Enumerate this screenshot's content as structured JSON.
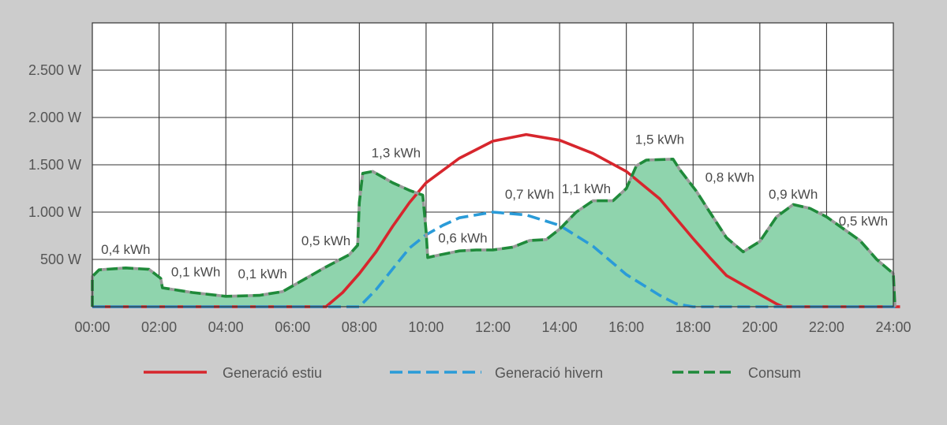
{
  "chart_data": {
    "type": "area",
    "x_ticks": [
      "00:00",
      "02:00",
      "04:00",
      "06:00",
      "08:00",
      "10:00",
      "12:00",
      "14:00",
      "16:00",
      "18:00",
      "20:00",
      "22:00",
      "24:00"
    ],
    "y_ticks": [
      {
        "value": 500,
        "label": "500 W"
      },
      {
        "value": 1000,
        "label": "1.000 W"
      },
      {
        "value": 1500,
        "label": "1.500 W"
      },
      {
        "value": 2000,
        "label": "2.000 W"
      },
      {
        "value": 2500,
        "label": "2.500 W"
      }
    ],
    "xlim": [
      0,
      24
    ],
    "ylim": [
      0,
      3000
    ],
    "grid": true,
    "legend_position": "bottom",
    "series": [
      {
        "name": "Consum",
        "style": "dashed",
        "color": "#1f8a3a",
        "fill": "#8fd4ad",
        "points": [
          [
            0.0,
            0
          ],
          [
            0.0,
            320
          ],
          [
            0.2,
            390
          ],
          [
            1.0,
            410
          ],
          [
            1.7,
            395
          ],
          [
            2.05,
            300
          ],
          [
            2.1,
            200
          ],
          [
            3.0,
            150
          ],
          [
            4.0,
            110
          ],
          [
            5.0,
            120
          ],
          [
            5.7,
            160
          ],
          [
            6.4,
            300
          ],
          [
            7.0,
            420
          ],
          [
            7.7,
            550
          ],
          [
            7.95,
            650
          ],
          [
            8.0,
            1100
          ],
          [
            8.1,
            1410
          ],
          [
            8.4,
            1430
          ],
          [
            9.0,
            1310
          ],
          [
            9.5,
            1230
          ],
          [
            9.9,
            1180
          ],
          [
            10.0,
            800
          ],
          [
            10.05,
            520
          ],
          [
            10.3,
            540
          ],
          [
            11.0,
            590
          ],
          [
            11.5,
            600
          ],
          [
            12.0,
            600
          ],
          [
            12.6,
            630
          ],
          [
            13.1,
            700
          ],
          [
            13.6,
            710
          ],
          [
            14.0,
            820
          ],
          [
            14.5,
            1000
          ],
          [
            15.0,
            1120
          ],
          [
            15.6,
            1120
          ],
          [
            16.0,
            1250
          ],
          [
            16.3,
            1490
          ],
          [
            16.6,
            1550
          ],
          [
            17.4,
            1560
          ],
          [
            17.6,
            1450
          ],
          [
            18.1,
            1220
          ],
          [
            18.5,
            1000
          ],
          [
            19.0,
            730
          ],
          [
            19.5,
            580
          ],
          [
            20.0,
            690
          ],
          [
            20.5,
            950
          ],
          [
            21.0,
            1080
          ],
          [
            21.5,
            1040
          ],
          [
            22.0,
            950
          ],
          [
            23.0,
            700
          ],
          [
            23.5,
            500
          ],
          [
            24.0,
            350
          ],
          [
            24.05,
            0
          ]
        ]
      },
      {
        "name": "Generació estiu",
        "style": "solid",
        "color": "#d7262d",
        "points": [
          [
            0,
            0
          ],
          [
            7.0,
            0
          ],
          [
            7.5,
            150
          ],
          [
            8.0,
            350
          ],
          [
            8.5,
            580
          ],
          [
            9.0,
            850
          ],
          [
            9.5,
            1100
          ],
          [
            10.0,
            1310
          ],
          [
            11.0,
            1570
          ],
          [
            12.0,
            1750
          ],
          [
            13.0,
            1820
          ],
          [
            14.0,
            1760
          ],
          [
            15.0,
            1620
          ],
          [
            16.0,
            1430
          ],
          [
            17.0,
            1140
          ],
          [
            17.5,
            930
          ],
          [
            18.0,
            720
          ],
          [
            18.5,
            520
          ],
          [
            19.0,
            330
          ],
          [
            19.5,
            230
          ],
          [
            20.0,
            130
          ],
          [
            20.5,
            30
          ],
          [
            20.7,
            0
          ],
          [
            24.2,
            0
          ]
        ]
      },
      {
        "name": "Generació hivern",
        "style": "dashdot",
        "color": "#2a9bd8",
        "points": [
          [
            0,
            0
          ],
          [
            8.0,
            0
          ],
          [
            8.5,
            180
          ],
          [
            9.0,
            400
          ],
          [
            9.5,
            620
          ],
          [
            10.0,
            760
          ],
          [
            10.5,
            860
          ],
          [
            11.0,
            940
          ],
          [
            12.0,
            1000
          ],
          [
            13.0,
            970
          ],
          [
            14.0,
            860
          ],
          [
            15.0,
            640
          ],
          [
            16.0,
            340
          ],
          [
            17.0,
            120
          ],
          [
            17.5,
            30
          ],
          [
            18.0,
            0
          ],
          [
            24.2,
            0
          ]
        ]
      }
    ],
    "annotations": [
      {
        "text": "0,4 kWh",
        "x": 1.0,
        "y": 560
      },
      {
        "text": "0,1 kWh",
        "x": 3.1,
        "y": 320
      },
      {
        "text": "0,1 kWh",
        "x": 5.1,
        "y": 300
      },
      {
        "text": "0,5 kWh",
        "x": 7.0,
        "y": 650
      },
      {
        "text": "1,3 kWh",
        "x": 9.1,
        "y": 1580
      },
      {
        "text": "0,6 kWh",
        "x": 11.1,
        "y": 680
      },
      {
        "text": "0,7 kWh",
        "x": 13.1,
        "y": 1140
      },
      {
        "text": "1,1 kWh",
        "x": 14.8,
        "y": 1200
      },
      {
        "text": "1,5 kWh",
        "x": 17.0,
        "y": 1720
      },
      {
        "text": "0,8 kWh",
        "x": 19.1,
        "y": 1320
      },
      {
        "text": "0,9 kWh",
        "x": 21.0,
        "y": 1140
      },
      {
        "text": "0,5 kWh",
        "x": 23.1,
        "y": 860
      }
    ]
  }
}
